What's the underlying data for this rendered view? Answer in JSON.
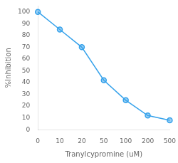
{
  "chart_data": {
    "type": "line",
    "xlabel": "Tranylcypromine (uM)",
    "ylabel": "%Inhibition",
    "categories": [
      "0",
      "10",
      "20",
      "50",
      "100",
      "200",
      "500"
    ],
    "values": [
      100,
      85,
      70,
      42,
      25,
      12,
      8
    ],
    "ylim": [
      0,
      105
    ],
    "yticks": [
      0,
      10,
      20,
      30,
      40,
      50,
      60,
      70,
      80,
      90,
      100
    ],
    "grid": false,
    "marker": "circle"
  }
}
